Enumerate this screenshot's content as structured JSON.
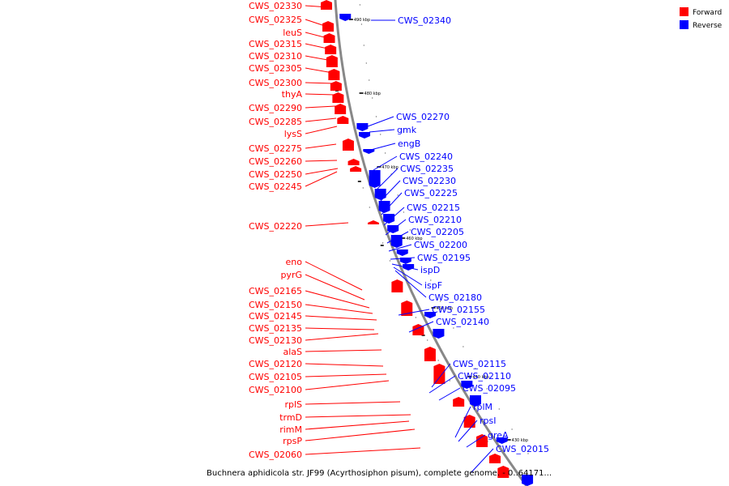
{
  "caption": "Buchnera aphidicola str. JF99 (Acyrthosiphon pisum), complete genome. - 0..64171...",
  "legend": [
    {
      "label": "Forward",
      "color": "#ff0000"
    },
    {
      "label": "Reverse",
      "color": "#0000ff"
    }
  ],
  "colors": {
    "forward": "#ff0000",
    "reverse": "#0000ff",
    "backbone": "#888888"
  },
  "ticks": [
    "490 kbp",
    "480 kbp",
    "470 kbp",
    "460 kbp",
    "450 kbp",
    "440 kbp",
    "430 kbp"
  ],
  "forward_labels": [
    "CWS_02330",
    "CWS_02325",
    "leuS",
    "CWS_02315",
    "CWS_02310",
    "CWS_02305",
    "CWS_02300",
    "thyA",
    "CWS_02290",
    "CWS_02285",
    "lysS",
    "CWS_02275",
    "CWS_02260",
    "CWS_02250",
    "CWS_02245",
    "CWS_02220",
    "eno",
    "pyrG",
    "CWS_02165",
    "CWS_02150",
    "CWS_02145",
    "CWS_02135",
    "CWS_02130",
    "alaS",
    "CWS_02120",
    "CWS_02105",
    "CWS_02100",
    "rplS",
    "trmD",
    "rimM",
    "rpsP",
    "CWS_02060"
  ],
  "reverse_labels": [
    "CWS_02340",
    "CWS_02270",
    "gmk",
    "engB",
    "CWS_02240",
    "CWS_02235",
    "CWS_02230",
    "CWS_02225",
    "CWS_02215",
    "CWS_02210",
    "CWS_02205",
    "CWS_02200",
    "CWS_02195",
    "ispD",
    "ispF",
    "CWS_02180",
    "CWS_02155",
    "CWS_02140",
    "CWS_02115",
    "CWS_02110",
    "CWS_02095",
    "rplM",
    "rpsI",
    "greA",
    "CWS_02015"
  ]
}
